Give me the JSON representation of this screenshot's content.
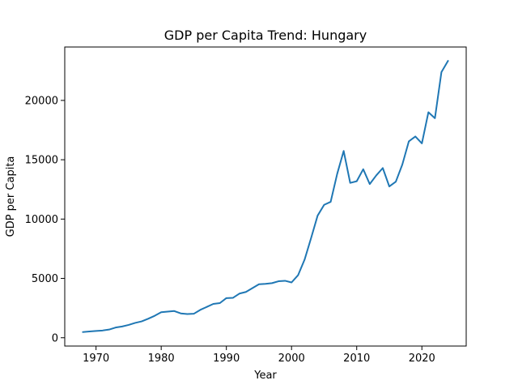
{
  "chart_data": {
    "type": "line",
    "title": "GDP per Capita Trend: Hungary",
    "xlabel": "Year",
    "ylabel": "GDP per Capita",
    "xlim": [
      1965.2,
      2026.8
    ],
    "ylim": [
      -700,
      24500
    ],
    "xticks": [
      1970,
      1980,
      1990,
      2000,
      2010,
      2020
    ],
    "yticks": [
      0,
      5000,
      10000,
      15000,
      20000
    ],
    "grid": false,
    "legend": "none",
    "line_color": "#1f77b4",
    "series": [
      {
        "x": [
          1968,
          1969,
          1970,
          1971,
          1972,
          1973,
          1974,
          1975,
          1976,
          1977,
          1978,
          1979,
          1980,
          1981,
          1982,
          1983,
          1984,
          1985,
          1986,
          1987,
          1988,
          1989,
          1990,
          1991,
          1992,
          1993,
          1994,
          1995,
          1996,
          1997,
          1998,
          1999,
          2000,
          2001,
          2002,
          2003,
          2004,
          2005,
          2006,
          2007,
          2008,
          2009,
          2010,
          2011,
          2012,
          2013,
          2014,
          2015,
          2016,
          2017,
          2018,
          2019,
          2020,
          2021,
          2022,
          2023,
          2024
        ],
        "y": [
          480,
          530,
          570,
          610,
          690,
          860,
          950,
          1080,
          1250,
          1380,
          1600,
          1850,
          2150,
          2200,
          2250,
          2050,
          2000,
          2020,
          2350,
          2600,
          2850,
          2920,
          3340,
          3360,
          3720,
          3860,
          4180,
          4510,
          4540,
          4600,
          4760,
          4800,
          4660,
          5270,
          6580,
          8400,
          10290,
          11200,
          11450,
          13800,
          15740,
          13050,
          13190,
          14200,
          12950,
          13680,
          14300,
          12750,
          13150,
          14600,
          16550,
          16960,
          16380,
          19000,
          18500,
          22380,
          23320
        ]
      }
    ]
  }
}
